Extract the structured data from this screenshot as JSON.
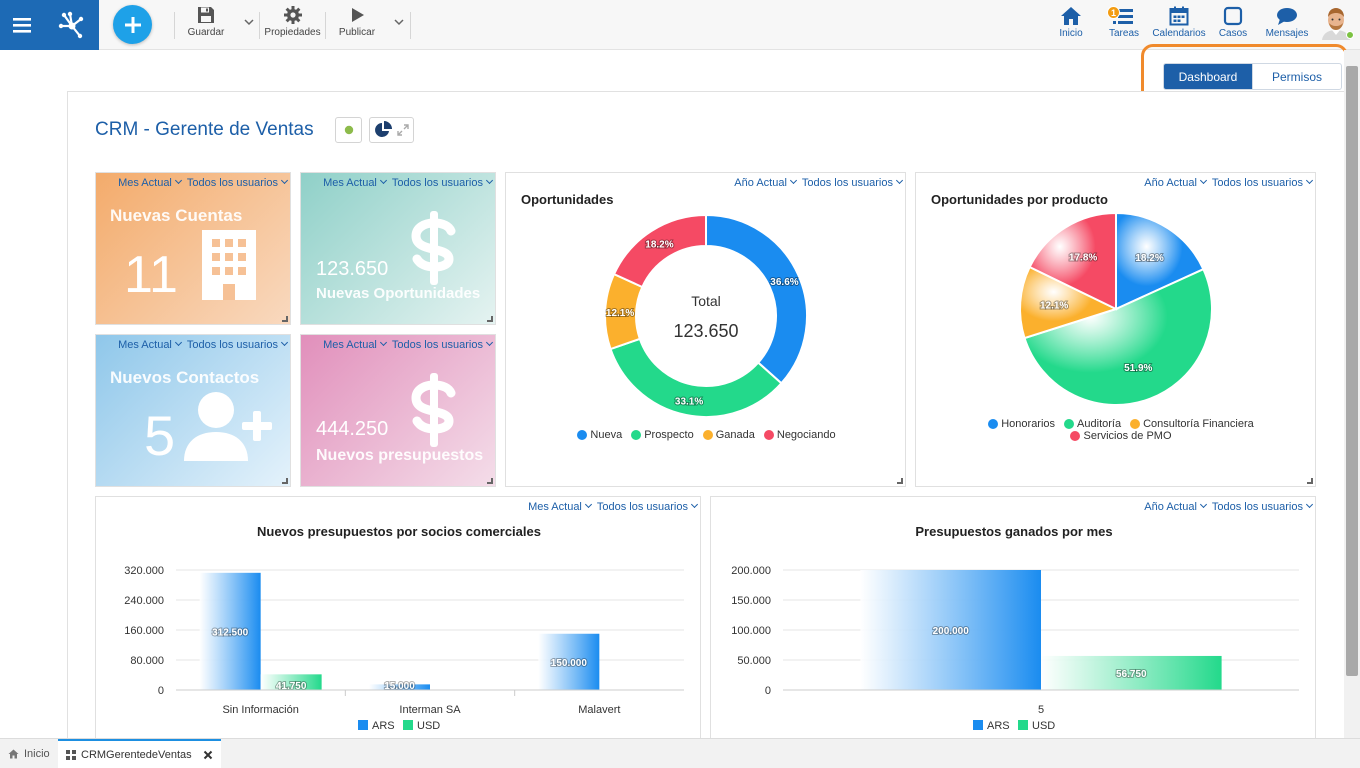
{
  "toolbar": {
    "save_label": "Guardar",
    "properties_label": "Propiedades",
    "publish_label": "Publicar"
  },
  "nav": {
    "home_label": "Inicio",
    "tasks_label": "Tareas",
    "tasks_badge": "1",
    "calendars_label": "Calendarios",
    "cases_label": "Casos",
    "messages_label": "Mensajes"
  },
  "toggle": {
    "dashboard_label": "Dashboard",
    "permissions_label": "Permisos",
    "active": "Dashboard"
  },
  "page": {
    "title": "CRM - Gerente de Ventas"
  },
  "kpis": [
    {
      "period": "Mes Actual",
      "users": "Todos los usuarios",
      "title": "Nuevas Cuentas",
      "value": "11",
      "icon": "building-icon",
      "color": "#f4b37f"
    },
    {
      "period": "Mes Actual",
      "users": "Todos los usuarios",
      "title": "Nuevas Oportunidades",
      "value": "123.650",
      "icon": "dollar-icon",
      "color": "#a3d8d3"
    },
    {
      "period": "Mes Actual",
      "users": "Todos los usuarios",
      "title": "Nuevos Contactos",
      "value": "5",
      "icon": "add-user-icon",
      "color": "#a7d3ec"
    },
    {
      "period": "Mes Actual",
      "users": "Todos los usuarios",
      "title": "Nuevos presupuestos",
      "value": "444.250",
      "icon": "dollar-icon",
      "color": "#e7a9c9"
    }
  ],
  "charts": {
    "opportunities": {
      "period": "Año Actual",
      "users": "Todos los usuarios",
      "center_label": "Total",
      "center_value": "123.650"
    },
    "by_product": {
      "period": "Año Actual",
      "users": "Todos los usuarios"
    },
    "partners": {
      "period": "Mes Actual",
      "users": "Todos los usuarios"
    },
    "monthly": {
      "period": "Año Actual",
      "users": "Todos los usuarios"
    }
  },
  "chart_data": [
    {
      "type": "pie",
      "variant": "donut",
      "title": "Oportunidades",
      "categories": [
        "Nueva",
        "Prospecto",
        "Ganada",
        "Negociando"
      ],
      "values": [
        36.6,
        33.1,
        12.1,
        18.2
      ],
      "labels": [
        "36.6%",
        "33.1%",
        "12.1%",
        "18.2%"
      ],
      "colors": [
        "#1a8cf0",
        "#23d98b",
        "#fbb02d",
        "#f54a64"
      ],
      "legend": "bottom"
    },
    {
      "type": "pie",
      "title": "Oportunidades por producto",
      "categories": [
        "Honorarios",
        "Auditoría",
        "Consultoría Financiera",
        "Servicios de PMO"
      ],
      "values": [
        18.2,
        51.9,
        12.1,
        17.8
      ],
      "labels": [
        "18.2%",
        "51.9%",
        "12.1%",
        "17.8%"
      ],
      "colors": [
        "#1a8cf0",
        "#23d98b",
        "#fbb02d",
        "#f54a64"
      ],
      "legend": "bottom"
    },
    {
      "type": "bar",
      "title": "Nuevos presupuestos por socios comerciales",
      "categories": [
        "Sin Información",
        "Interman SA",
        "Malavert"
      ],
      "series": [
        {
          "name": "ARS",
          "values": [
            312500,
            15000,
            150000
          ],
          "labels": [
            "312.500",
            "15.000",
            "150.000"
          ],
          "color": "#1a8cf0"
        },
        {
          "name": "USD",
          "values": [
            41750,
            0,
            0
          ],
          "labels": [
            "41.750",
            "",
            ""
          ],
          "color": "#23d98b"
        }
      ],
      "ylim": [
        0,
        320000
      ],
      "yticks": [
        "0",
        "80.000",
        "160.000",
        "240.000",
        "320.000"
      ],
      "grid": true,
      "legend": "bottom"
    },
    {
      "type": "bar",
      "title": "Presupuestos ganados por mes",
      "categories": [
        "5"
      ],
      "series": [
        {
          "name": "ARS",
          "values": [
            200000
          ],
          "labels": [
            "200.000"
          ],
          "color": "#1a8cf0"
        },
        {
          "name": "USD",
          "values": [
            56750
          ],
          "labels": [
            "56.750"
          ],
          "color": "#23d98b"
        }
      ],
      "ylim": [
        0,
        200000
      ],
      "yticks": [
        "0",
        "50.000",
        "100.000",
        "150.000",
        "200.000"
      ],
      "grid": true,
      "legend": "bottom"
    }
  ],
  "bottom_tabs": {
    "home": "Inicio",
    "crm": "CRMGerentedeVentas"
  }
}
